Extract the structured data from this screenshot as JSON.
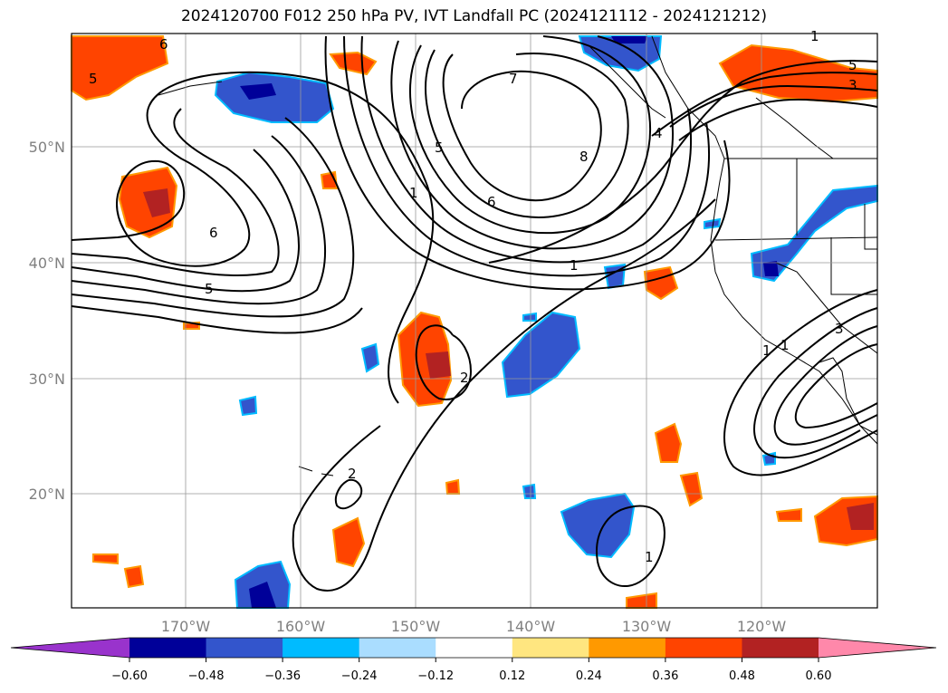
{
  "title": "2024120700 F012 250 hPa PV, IVT Landfall PC (2024121112 - 2024121212)",
  "lat_labels": [
    "50°N",
    "40°N",
    "30°N",
    "20°N"
  ],
  "lon_labels": [
    "170°W",
    "160°W",
    "150°W",
    "140°W",
    "130°W",
    "120°W"
  ],
  "colorbar": {
    "colors": [
      "#9933cc",
      "#000099",
      "#3355cc",
      "#00bbff",
      "#aaddff",
      "#ffffff",
      "#ffe680",
      "#ff9900",
      "#ff4400",
      "#b22222",
      "#ff88aa"
    ],
    "tick_labels": [
      "−0.60",
      "−0.48",
      "−0.36",
      "−0.24",
      "−0.12",
      "0.12",
      "0.24",
      "0.36",
      "0.48",
      "0.60"
    ]
  },
  "contour_labels": [
    "6",
    "5",
    "7",
    "1",
    "5",
    "6",
    "8",
    "4",
    "5",
    "3",
    "6",
    "5",
    "1",
    "2",
    "2",
    "1",
    "1",
    "1",
    "3",
    "1"
  ]
}
